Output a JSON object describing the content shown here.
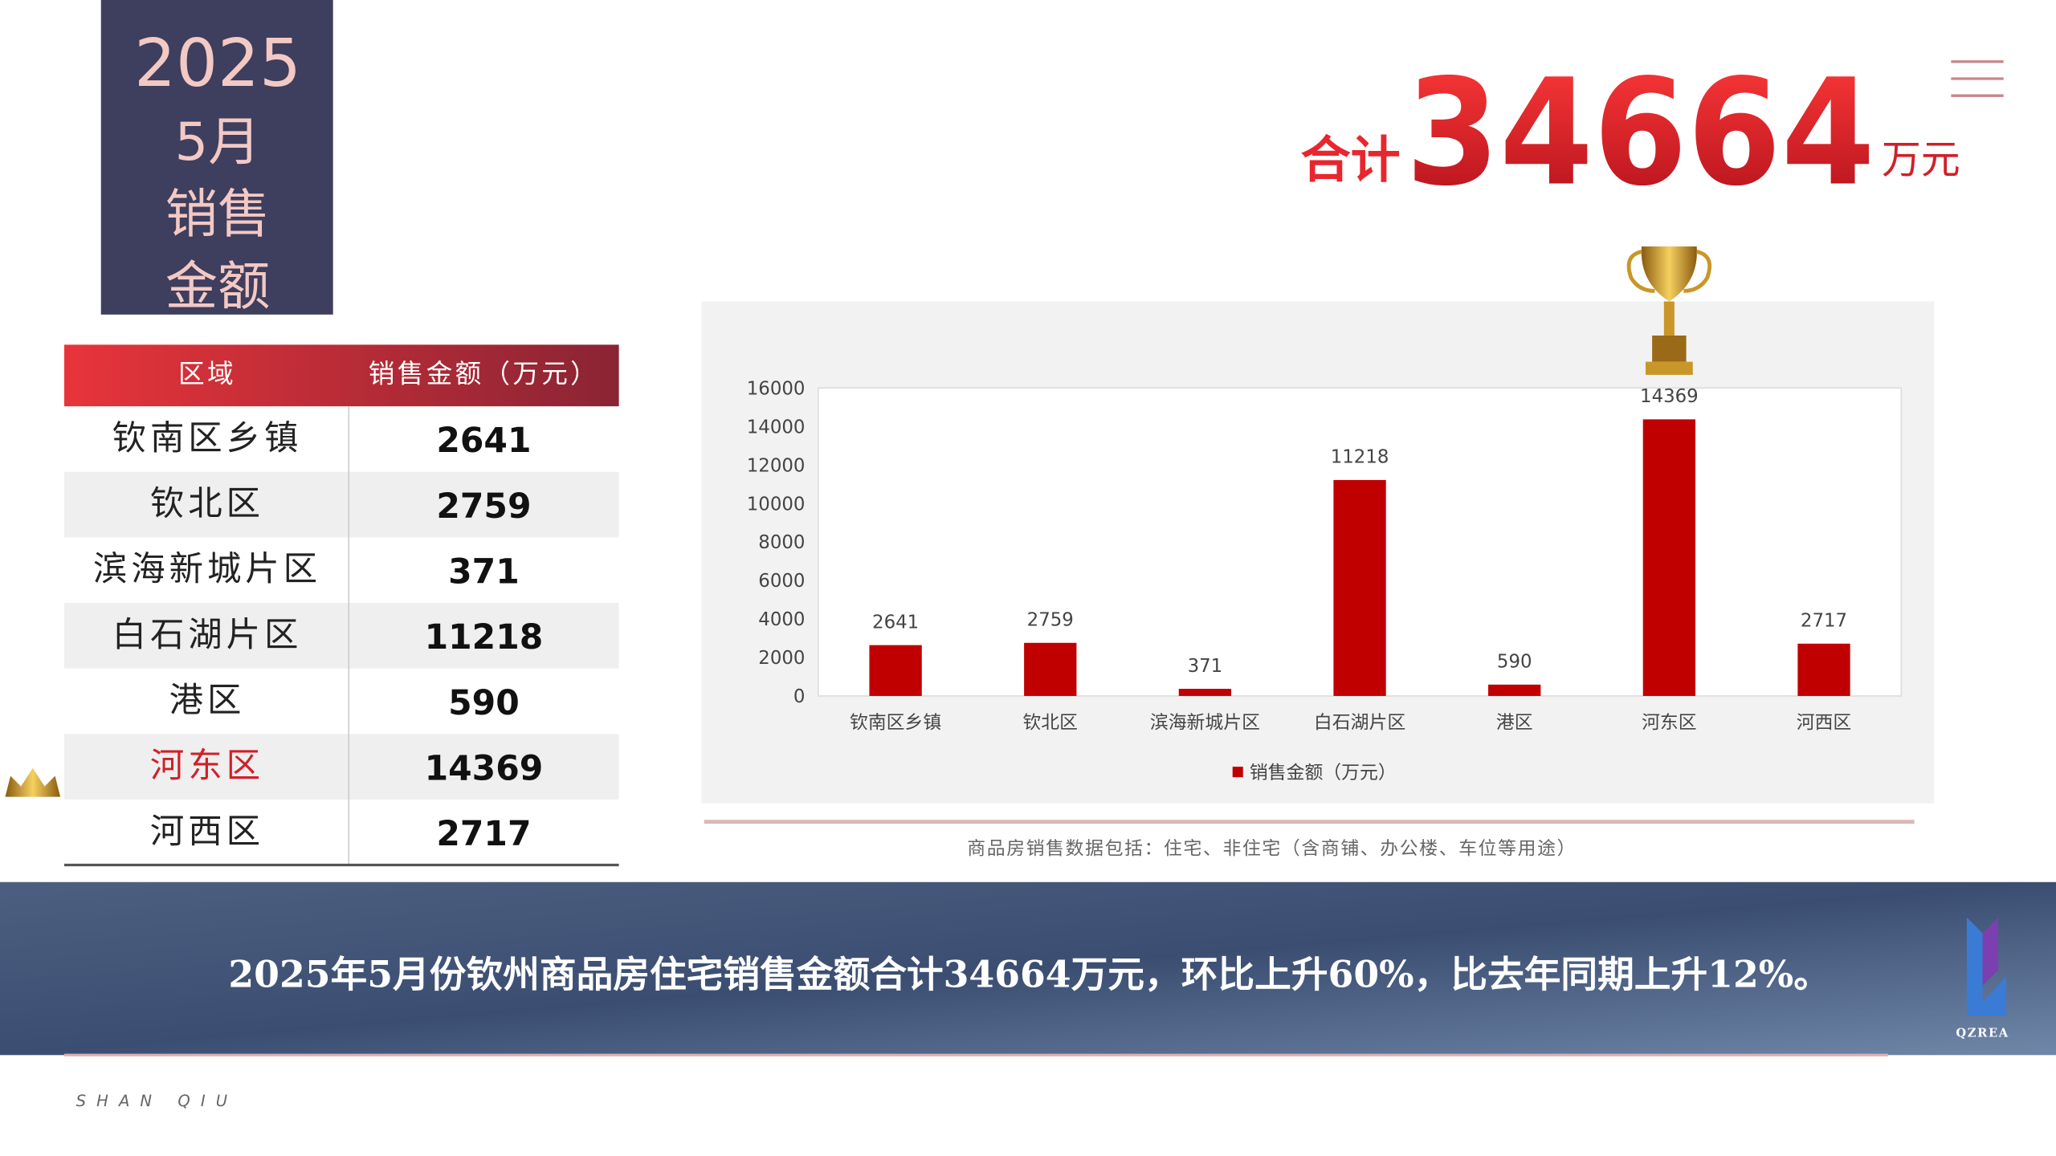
{
  "title_block": [
    "2025",
    "5月",
    "销售",
    "金额"
  ],
  "total": {
    "prefix": "合计",
    "value": 34664,
    "unit": "万元"
  },
  "table": {
    "headers": [
      "区域",
      "销售金额（万元）"
    ],
    "rows": [
      [
        "钦南区乡镇",
        2641
      ],
      [
        "钦北区",
        2759
      ],
      [
        "滨海新城片区",
        371
      ],
      [
        "白石湖片区",
        11218
      ],
      [
        "港区",
        590
      ],
      [
        "河东区",
        14369
      ],
      [
        "河西区",
        2717
      ]
    ]
  },
  "chart_data": {
    "type": "bar",
    "categories": [
      "钦南区乡镇",
      "钦北区",
      "滨海新城片区",
      "白石湖片区",
      "港区",
      "河东区",
      "河西区"
    ],
    "series": [
      {
        "name": "销售金额（万元）",
        "color": "#c00000",
        "values": [
          2641,
          2759,
          371,
          11218,
          590,
          14369,
          2717
        ]
      }
    ],
    "ylim": [
      0,
      16000
    ],
    "yticks": [
      0,
      2000,
      4000,
      6000,
      8000,
      10000,
      12000,
      14000,
      16000
    ],
    "grid": false,
    "data_labels": true
  },
  "note": "商品房销售数据包括：住宅、非住宅（含商铺、办公楼、车位等用途）",
  "banner": "2025年5月份钦州商品房住宅销售金额合计34664万元，环比上升60%，比去年同期上升12%。",
  "footer": "SHAN QIU",
  "logo": "QZREA"
}
